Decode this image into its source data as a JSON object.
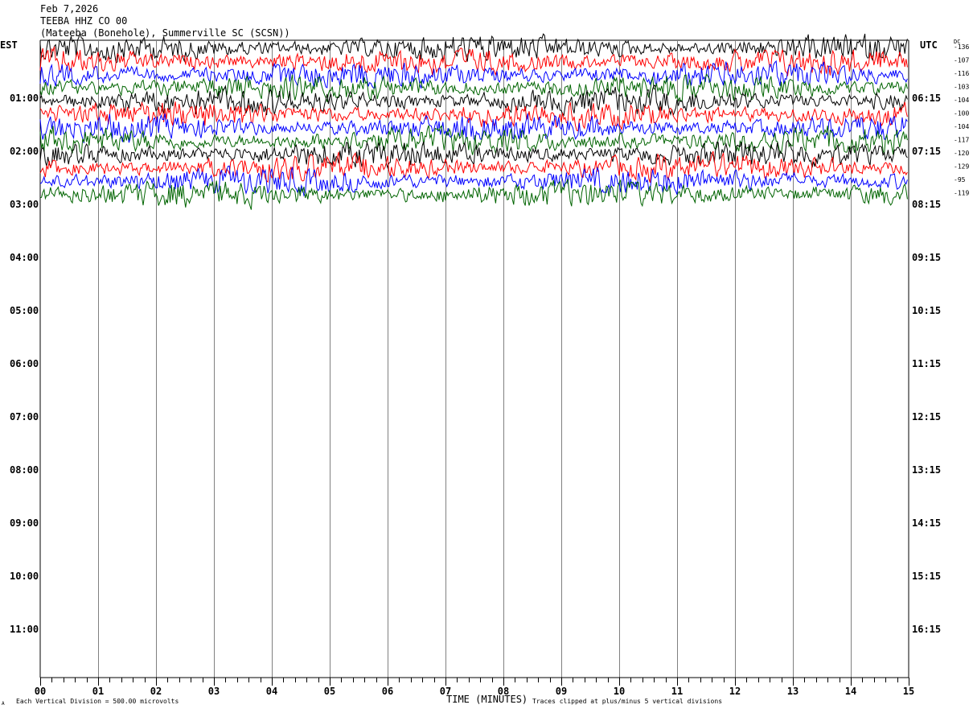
{
  "header": {
    "date": "Feb 7,2026",
    "station": "TEEBA HHZ CO 00",
    "location": "(Mateeba (Bonehole), Summerville SC (SCSN))"
  },
  "left_timezone": "EST",
  "right_timezone": "UTC",
  "dc_label": "DC",
  "footer": {
    "scale_note": "Each Vertical Division =  500.00 microvolts",
    "clip_note": "Traces clipped at plus/minus 5 vertical divisions",
    "corner_mark": "A"
  },
  "colors": [
    "#000000",
    "#ff0000",
    "#0000ff",
    "#006400"
  ],
  "chart_data": {
    "type": "line",
    "title": "",
    "xlabel": "TIME (MINUTES)",
    "ylabel": "",
    "xlim": [
      0,
      15
    ],
    "x_ticks": [
      "00",
      "01",
      "02",
      "03",
      "04",
      "05",
      "06",
      "07",
      "08",
      "09",
      "10",
      "11",
      "12",
      "13",
      "14",
      "15"
    ],
    "left_hour_labels": [
      "01:00",
      "02:00",
      "03:00",
      "04:00",
      "05:00",
      "06:00",
      "07:00",
      "08:00",
      "09:00",
      "10:00",
      "11:00"
    ],
    "right_hour_labels": [
      "06:15",
      "07:15",
      "08:15",
      "09:15",
      "10:15",
      "11:15",
      "12:15",
      "13:15",
      "14:15",
      "15:15",
      "16:15"
    ],
    "dc_offsets": [
      "-136",
      "-107",
      "-116",
      "-103",
      "-104",
      "-100",
      "-104",
      "-117",
      "-120",
      "-129",
      "-95",
      "-119"
    ],
    "traces_drawn": 12,
    "grid": true
  }
}
